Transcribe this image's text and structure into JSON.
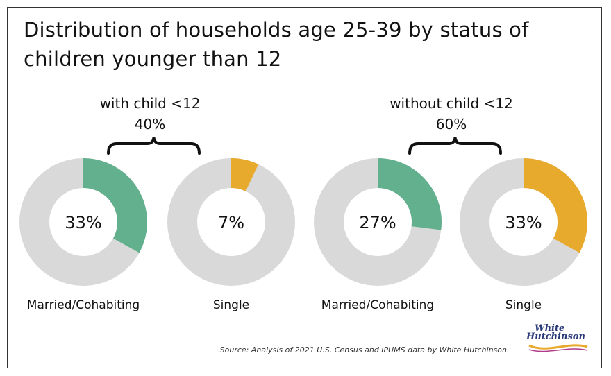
{
  "chart_data": {
    "type": "pie",
    "title": "Distribution of households age 25-39 by status of children younger than 12",
    "groups": [
      {
        "label": "with child <12",
        "total": "40%"
      },
      {
        "label": "without child <12",
        "total": "60%"
      }
    ],
    "donuts": [
      {
        "category": "Married/Cohabiting",
        "group": "with child <12",
        "value": 33,
        "label": "33%",
        "color": "#63b08f"
      },
      {
        "category": "Single",
        "group": "with child <12",
        "value": 7,
        "label": "7%",
        "color": "#e8aa2c"
      },
      {
        "category": "Married/Cohabiting",
        "group": "without child <12",
        "value": 27,
        "label": "27%",
        "color": "#63b08f"
      },
      {
        "category": "Single",
        "group": "without child <12",
        "value": 33,
        "label": "33%",
        "color": "#e8aa2c"
      }
    ],
    "remainder_color": "#d9d9d9",
    "source": "Source: Analysis of 2021 U.S. Census and IPUMS data by White Hutchinson"
  },
  "logo": {
    "line1": "White",
    "line2": "Hutchinson"
  }
}
